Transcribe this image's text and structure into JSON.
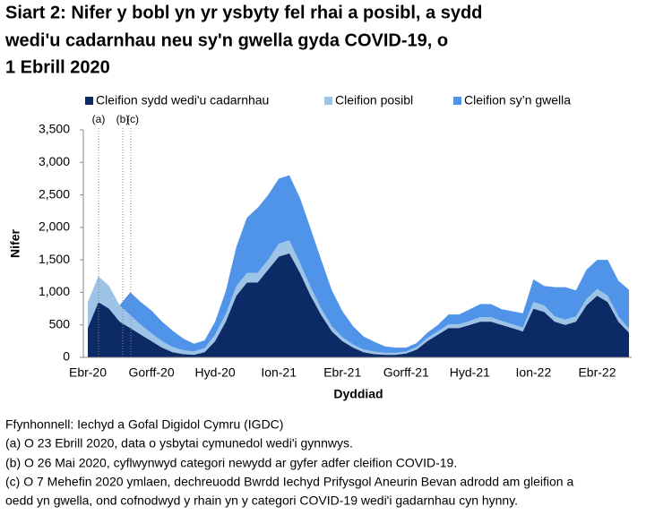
{
  "chart_data": {
    "type": "stacked_area",
    "title_lines": [
      "Siart 2: Nifer y bobl yn yr ysbyty fel rhai a posibl, a sydd",
      "wedi'u cadarnhau neu sy'n gwella gyda COVID-19, o",
      "1 Ebrill 2020"
    ],
    "y_label": "Nifer",
    "x_label": "Dyddiad",
    "annotations": [
      "(a)",
      "(b)",
      "(c)"
    ],
    "notes": [
      "Ffynhonnell: Iechyd a Gofal Digidol Cymru (IGDC)",
      "(a) O 23 Ebrill 2020, data o ysbytai cymunedol wedi'i gynnwys.",
      "(b) O 26 Mai 2020, cyflwynwyd categori newydd ar gyfer adfer cleifion COVID-19.",
      "(c) O 7 Mehefin 2020 ymlaen, dechreuodd Bwrdd Iechyd Prifysgol Aneurin Bevan adrodd am gleifion a",
      "oedd yn gwella, ond cofnodwyd y rhain yn y categori COVID-19 wedi'i gadarnhau cyn hynny."
    ],
    "categories": [
      "Ebr-20",
      null,
      null,
      null,
      null,
      null,
      "Gorff-20",
      null,
      null,
      null,
      null,
      null,
      "Hyd-20",
      null,
      null,
      null,
      null,
      null,
      "Ion-21",
      null,
      null,
      null,
      null,
      null,
      "Ebr-21",
      null,
      null,
      null,
      null,
      null,
      "Gorff-21",
      null,
      null,
      null,
      null,
      null,
      "Hyd-21",
      null,
      null,
      null,
      null,
      null,
      "Ion-22",
      null,
      null,
      null,
      null,
      null,
      "Ebr-22",
      null,
      null,
      null
    ],
    "series": [
      {
        "name": "Cleifion sydd wedi'u cadarnhau",
        "color": "#0c2a66",
        "values": [
          450,
          850,
          750,
          550,
          450,
          350,
          250,
          150,
          80,
          50,
          40,
          80,
          250,
          550,
          950,
          1150,
          1150,
          1350,
          1550,
          1600,
          1300,
          950,
          650,
          400,
          250,
          150,
          80,
          50,
          40,
          40,
          60,
          120,
          250,
          350,
          450,
          450,
          500,
          550,
          550,
          500,
          450,
          400,
          750,
          700,
          550,
          500,
          550,
          800,
          950,
          850,
          550,
          380
        ]
      },
      {
        "name": "Cleifion posibl",
        "color": "#9dc3e6",
        "values": [
          400,
          400,
          350,
          250,
          200,
          150,
          120,
          100,
          80,
          60,
          50,
          60,
          100,
          120,
          150,
          150,
          150,
          150,
          200,
          200,
          150,
          130,
          100,
          80,
          60,
          50,
          40,
          40,
          30,
          30,
          30,
          40,
          50,
          50,
          60,
          60,
          60,
          70,
          70,
          60,
          60,
          60,
          100,
          100,
          80,
          80,
          80,
          100,
          100,
          100,
          80,
          60
        ]
      },
      {
        "name": "Cleifion sy’n gwella",
        "color": "#4f94e8",
        "values": [
          0,
          0,
          0,
          0,
          350,
          350,
          350,
          300,
          250,
          180,
          120,
          120,
          200,
          350,
          600,
          850,
          1000,
          1000,
          1000,
          1000,
          1000,
          900,
          750,
          550,
          400,
          280,
          200,
          150,
          100,
          80,
          60,
          60,
          80,
          100,
          150,
          150,
          180,
          200,
          200,
          180,
          200,
          220,
          350,
          300,
          450,
          500,
          400,
          450,
          450,
          550,
          550,
          600
        ]
      }
    ],
    "ylim": [
      0,
      3500
    ],
    "yticks": [
      0,
      500,
      {
        "value": 1000,
        "label": "1,000"
      },
      {
        "value": 1500,
        "label": "1,500"
      },
      {
        "value": 2000,
        "label": "2,000"
      },
      {
        "value": 2500,
        "label": "2,500"
      },
      {
        "value": 3000,
        "label": "3,000"
      },
      {
        "value": 3500,
        "label": "3,500"
      }
    ],
    "grid": false,
    "legend": "top"
  }
}
